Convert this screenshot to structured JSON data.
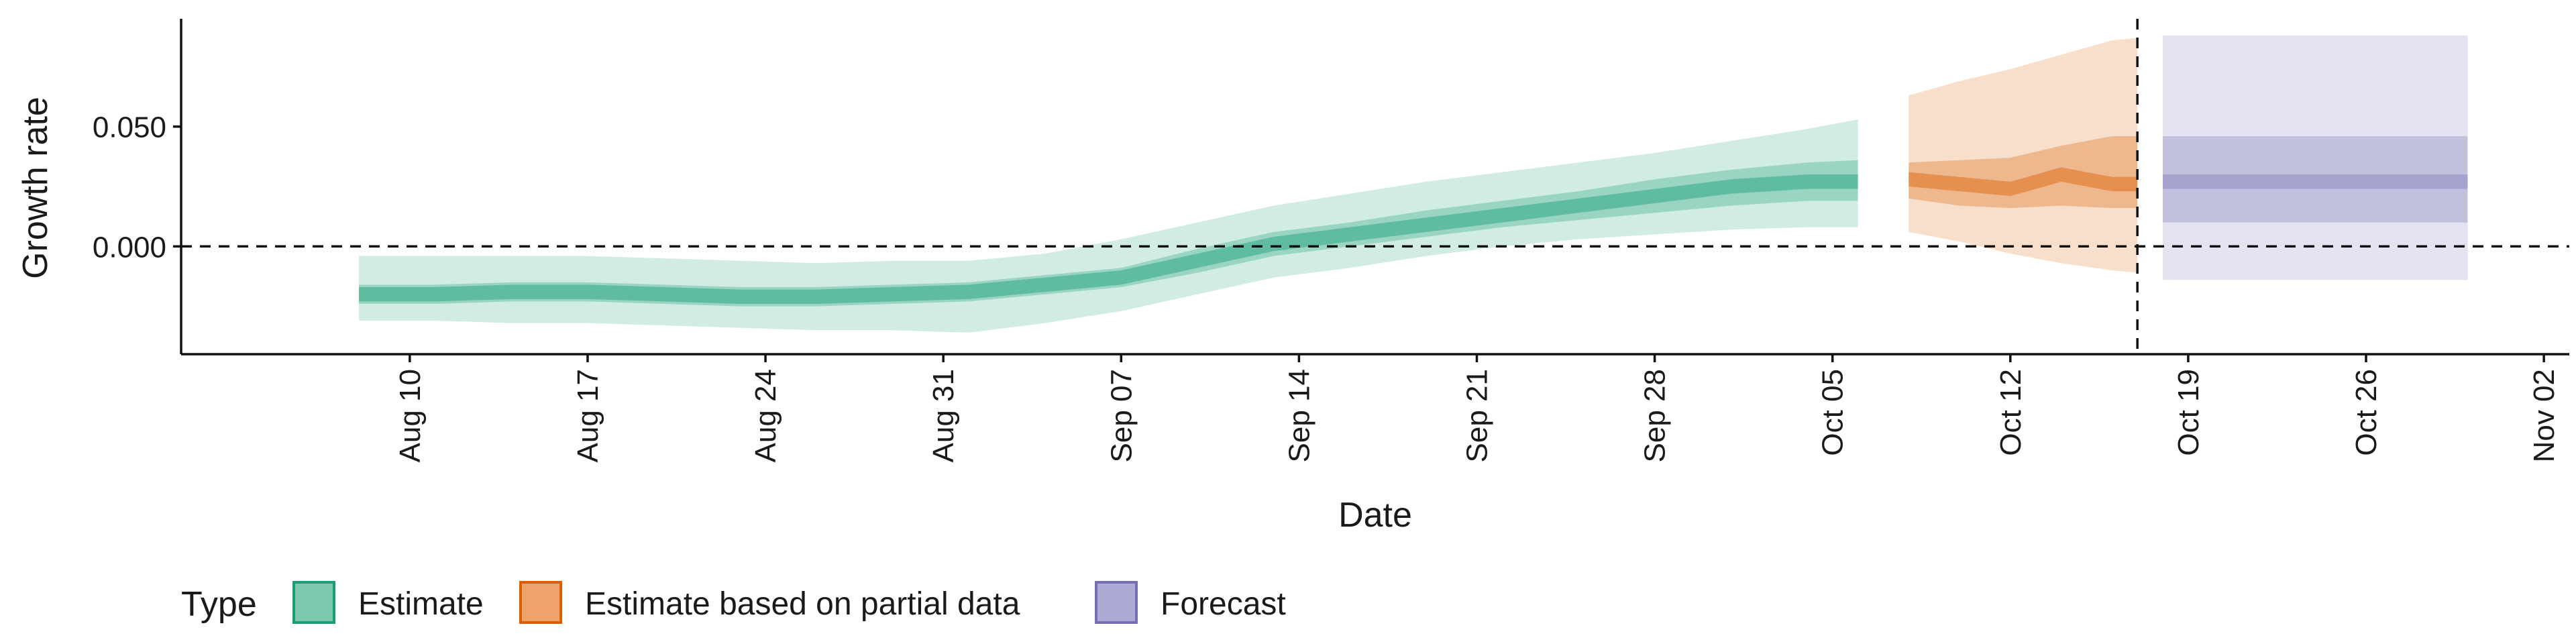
{
  "chart_data": {
    "type": "area",
    "title": "",
    "xlabel": "Date",
    "ylabel": "Growth rate",
    "x_range": [
      "2020-08-01",
      "2020-11-03"
    ],
    "ylim": [
      -0.045,
      0.095
    ],
    "y_ticks": [
      0.0,
      0.05
    ],
    "y_tick_labels": [
      "0.000",
      "0.050"
    ],
    "x_ticks": [
      "2020-08-10",
      "2020-08-17",
      "2020-08-24",
      "2020-08-31",
      "2020-09-07",
      "2020-09-14",
      "2020-09-21",
      "2020-09-28",
      "2020-10-05",
      "2020-10-12",
      "2020-10-19",
      "2020-10-26",
      "2020-11-02"
    ],
    "x_tick_labels": [
      "Aug 10",
      "Aug 17",
      "Aug 24",
      "Aug 31",
      "Sep 07",
      "Sep 14",
      "Sep 21",
      "Sep 28",
      "Oct 05",
      "Oct 12",
      "Oct 19",
      "Oct 26",
      "Nov 02"
    ],
    "reference_lines": {
      "horizontal_y": 0.0,
      "vertical_date": "2020-10-17"
    },
    "grid": false,
    "legend": {
      "title": "Type",
      "position": "bottom-left",
      "entries": [
        {
          "label": "Estimate",
          "fill": "#7fc9ae",
          "border": "#1b9e77"
        },
        {
          "label": "Estimate based on partial data",
          "fill": "#eea36a",
          "border": "#d95f02"
        },
        {
          "label": "Forecast",
          "fill": "#adaad6",
          "border": "#7570b3"
        }
      ]
    },
    "series": [
      {
        "name": "Estimate",
        "color": "#1b9e77",
        "x": [
          "2020-08-08",
          "2020-08-11",
          "2020-08-14",
          "2020-08-17",
          "2020-08-20",
          "2020-08-23",
          "2020-08-26",
          "2020-08-29",
          "2020-09-01",
          "2020-09-04",
          "2020-09-07",
          "2020-09-10",
          "2020-09-13",
          "2020-09-16",
          "2020-09-19",
          "2020-09-22",
          "2020-09-25",
          "2020-09-28",
          "2020-10-01",
          "2020-10-04",
          "2020-10-06"
        ],
        "median": [
          -0.02,
          -0.02,
          -0.019,
          -0.019,
          -0.02,
          -0.021,
          -0.021,
          -0.02,
          -0.019,
          -0.016,
          -0.013,
          -0.006,
          0.001,
          0.005,
          0.009,
          0.013,
          0.017,
          0.021,
          0.025,
          0.027,
          0.027
        ],
        "lower_50": [
          -0.024,
          -0.024,
          -0.023,
          -0.023,
          -0.024,
          -0.025,
          -0.025,
          -0.024,
          -0.023,
          -0.02,
          -0.017,
          -0.011,
          -0.004,
          0.0,
          0.004,
          0.008,
          0.011,
          0.014,
          0.017,
          0.019,
          0.019
        ],
        "upper_50": [
          -0.016,
          -0.016,
          -0.015,
          -0.015,
          -0.016,
          -0.017,
          -0.017,
          -0.016,
          -0.015,
          -0.012,
          -0.009,
          -0.001,
          0.006,
          0.01,
          0.015,
          0.019,
          0.023,
          0.028,
          0.032,
          0.035,
          0.036
        ],
        "lower_90": [
          -0.031,
          -0.031,
          -0.032,
          -0.032,
          -0.033,
          -0.034,
          -0.035,
          -0.035,
          -0.036,
          -0.032,
          -0.027,
          -0.02,
          -0.013,
          -0.009,
          -0.004,
          0.0,
          0.003,
          0.005,
          0.007,
          0.008,
          0.008
        ],
        "upper_90": [
          -0.004,
          -0.004,
          -0.004,
          -0.004,
          -0.005,
          -0.006,
          -0.007,
          -0.006,
          -0.006,
          -0.003,
          0.003,
          0.01,
          0.017,
          0.022,
          0.027,
          0.031,
          0.035,
          0.039,
          0.044,
          0.049,
          0.053
        ]
      },
      {
        "name": "Estimate based on partial data",
        "color": "#d95f02",
        "x": [
          "2020-10-08",
          "2020-10-10",
          "2020-10-12",
          "2020-10-14",
          "2020-10-16",
          "2020-10-17"
        ],
        "median": [
          0.028,
          0.026,
          0.024,
          0.03,
          0.026,
          0.026
        ],
        "lower_50": [
          0.02,
          0.017,
          0.016,
          0.017,
          0.016,
          0.016
        ],
        "upper_50": [
          0.035,
          0.036,
          0.037,
          0.042,
          0.046,
          0.046
        ],
        "lower_90": [
          0.006,
          0.002,
          -0.003,
          -0.007,
          -0.01,
          -0.011
        ],
        "upper_90": [
          0.063,
          0.069,
          0.074,
          0.08,
          0.086,
          0.087
        ]
      },
      {
        "name": "Forecast",
        "color": "#7570b3",
        "x": [
          "2020-10-18",
          "2020-10-30"
        ],
        "median": [
          0.027,
          0.027
        ],
        "lower_50": [
          0.01,
          0.01
        ],
        "upper_50": [
          0.046,
          0.046
        ],
        "lower_90": [
          -0.014,
          -0.014
        ],
        "upper_90": [
          0.088,
          0.088
        ]
      }
    ]
  }
}
